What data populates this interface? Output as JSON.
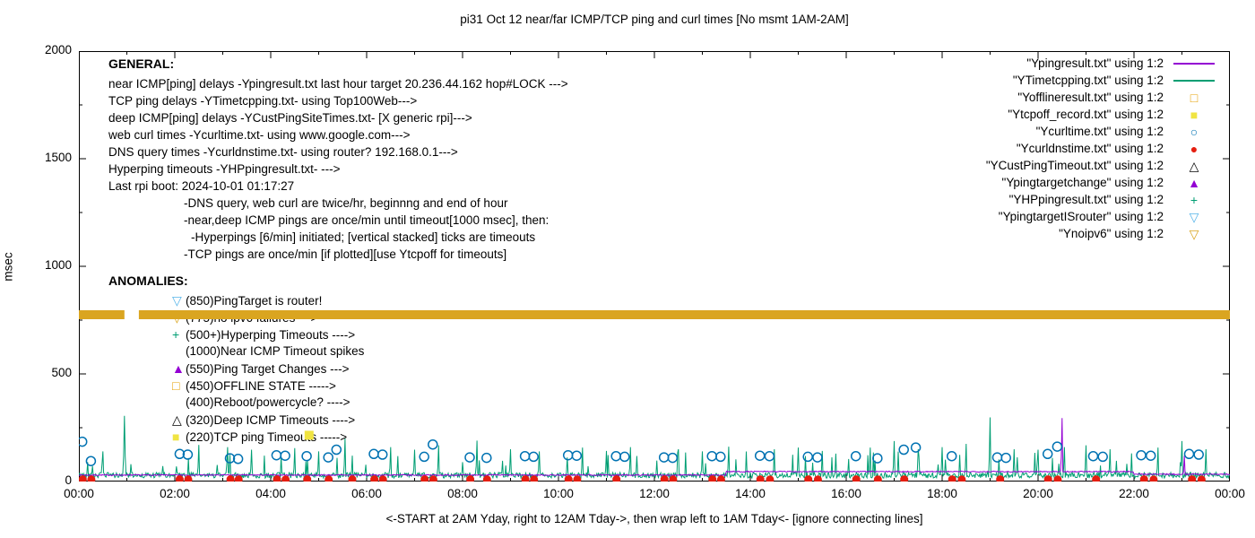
{
  "chart_data": {
    "type": "mixed",
    "title": "pi31 Oct 12  near/far ICMP/TCP ping and curl times [No msmt 1AM-2AM]",
    "ylabel": "msec",
    "xlabel": "<-START at 2AM Yday, right to 12AM Tday->, then wrap left to 1AM Tday<- [ignore connecting lines]",
    "ylim": [
      0,
      2000
    ],
    "yticks": [
      0,
      500,
      1000,
      1500,
      2000
    ],
    "x_hours": [
      0,
      24
    ],
    "xticks": [
      "00:00",
      "02:00",
      "04:00",
      "06:00",
      "08:00",
      "10:00",
      "12:00",
      "14:00",
      "16:00",
      "18:00",
      "20:00",
      "22:00",
      "00:00"
    ],
    "legend": [
      {
        "label": "\"Ypingresult.txt\" using 1:2",
        "style": "line",
        "color": "#9400D3"
      },
      {
        "label": "\"YTimetcpping.txt\" using 1:2",
        "style": "line",
        "color": "#009E73"
      },
      {
        "label": "\"Yofflineresult.txt\" using 1:2",
        "style": "square-open",
        "color": "#E69F00"
      },
      {
        "label": "\"Ytcpoff_record.txt\" using 1:2",
        "style": "square-filled",
        "color": "#F0E442"
      },
      {
        "label": "\"Ycurltime.txt\" using 1:2",
        "style": "circle-open",
        "color": "#0072B2"
      },
      {
        "label": "\"Ycurldnstime.txt\" using 1:2",
        "style": "circle-filled",
        "color": "#E51E10"
      },
      {
        "label": "\"YCustPingTimeout.txt\" using 1:2",
        "style": "triangle-open",
        "color": "#000000"
      },
      {
        "label": "\"Ypingtargetchange\" using 1:2",
        "style": "triangle-filled",
        "color": "#9400D3"
      },
      {
        "label": "\"YHPpingresult.txt\" using 1:2",
        "style": "plus",
        "color": "#009E73"
      },
      {
        "label": "\"YpingtargetISrouter\" using 1:2",
        "style": "triangle-down-open",
        "color": "#56B4E9"
      },
      {
        "label": "\"Ynoipv6\" using 1:2",
        "style": "triangle-down-open",
        "color": "#DAA520"
      }
    ],
    "general": {
      "heading": "GENERAL:",
      "lines": [
        {
          "text": "near ICMP[ping] delays -Ypingresult.txt last hour target 20.236.44.162 hop#LOCK --->",
          "indent": 0
        },
        {
          "text": "TCP ping delays -YTimetcpping.txt- using Top100Web--->",
          "indent": 0
        },
        {
          "text": "deep ICMP[ping] delays -YCustPingSiteTimes.txt- [X generic rpi]--->",
          "indent": 0
        },
        {
          "text": "web curl times -Ycurltime.txt- using www.google.com--->",
          "indent": 0
        },
        {
          "text": "DNS query times -Ycurldnstime.txt- using router? 192.168.0.1--->",
          "indent": 0
        },
        {
          "text": "Hyperping timeouts -YHPpingresult.txt- --->",
          "indent": 0
        },
        {
          "text": "Last rpi boot: 2024-10-01 01:17:27",
          "indent": 0
        },
        {
          "text": "-DNS query, web curl are twice/hr, beginnng and end of hour",
          "indent": 1
        },
        {
          "text": "-near,deep ICMP pings are once/min until timeout[1000 msec], then:",
          "indent": 1
        },
        {
          "text": "-Hyperpings [6/min] initiated; [vertical stacked] ticks are timeouts",
          "indent": 2
        },
        {
          "text": "-TCP pings are once/min [if plotted][use Ytcpoff for timeouts]",
          "indent": 1
        }
      ]
    },
    "anomalies": {
      "heading": "ANOMALIES:",
      "items": [
        {
          "marker": "triangle-down-open",
          "color": "#56B4E9",
          "text": "(850)PingTarget is router!"
        },
        {
          "marker": "triangle-down-open",
          "color": "#DAA520",
          "text": "(775)no ipv6 failures --->"
        },
        {
          "marker": "plus",
          "color": "#009E73",
          "text": "(500+)Hyperping Timeouts ---->"
        },
        {
          "marker": null,
          "color": "#000000",
          "text": "(1000)Near ICMP Timeout spikes"
        },
        {
          "marker": "triangle-filled",
          "color": "#9400D3",
          "text": "(550)Ping Target Changes --->"
        },
        {
          "marker": "square-open",
          "color": "#E69F00",
          "text": "(450)OFFLINE STATE ----->"
        },
        {
          "marker": null,
          "color": "#000000",
          "text": "(400)Reboot/powercycle? ---->"
        },
        {
          "marker": "triangle-open",
          "color": "#000000",
          "text": "(320)Deep ICMP Timeouts ---->"
        },
        {
          "marker": "square-filled",
          "color": "#F0E442",
          "text": "(220)TCP ping Timeouts ----->"
        }
      ]
    },
    "series": {
      "ping_line": {
        "name": "Ypingresult.txt",
        "kind": "ping",
        "color": "#9400D3",
        "baseline_early": 30,
        "baseline_mid": 46,
        "baseline_late": 34,
        "spikes": [
          [
            20.5,
            295
          ],
          [
            23.05,
            120
          ]
        ]
      },
      "tcp_line": {
        "name": "YTimetcpping.txt",
        "kind": "tcp",
        "color": "#009E73",
        "baseline": 28,
        "noise": 26,
        "spikes": [
          [
            0.5,
            140
          ],
          [
            0.95,
            305
          ],
          [
            2.5,
            170
          ],
          [
            3.1,
            160
          ],
          [
            3.6,
            148
          ],
          [
            4.5,
            155
          ],
          [
            5.0,
            140
          ],
          [
            5.55,
            200
          ],
          [
            6.5,
            160
          ],
          [
            7.0,
            148
          ],
          [
            7.5,
            168
          ],
          [
            8.3,
            190
          ],
          [
            9.0,
            150
          ],
          [
            9.6,
            140
          ],
          [
            10.5,
            158
          ],
          [
            11.0,
            142
          ],
          [
            11.5,
            160
          ],
          [
            12.5,
            150
          ],
          [
            13.0,
            140
          ],
          [
            13.55,
            162
          ],
          [
            14.5,
            150
          ],
          [
            15.0,
            158
          ],
          [
            15.5,
            142
          ],
          [
            16.5,
            158
          ],
          [
            17.0,
            188
          ],
          [
            17.5,
            150
          ],
          [
            18.0,
            160
          ],
          [
            18.5,
            175
          ],
          [
            19.0,
            298
          ],
          [
            19.5,
            150
          ],
          [
            20.0,
            148
          ],
          [
            20.55,
            160
          ],
          [
            21.0,
            168
          ],
          [
            21.5,
            150
          ],
          [
            22.5,
            158
          ],
          [
            23.0,
            188
          ],
          [
            23.5,
            150
          ]
        ]
      },
      "curl_points": {
        "name": "Ycurltime.txt",
        "color": "#0072B2",
        "marker": "circle-open",
        "points": [
          [
            0.07,
            185
          ],
          [
            0.25,
            95
          ],
          [
            2.1,
            128
          ],
          [
            2.27,
            125
          ],
          [
            3.15,
            108
          ],
          [
            3.32,
            105
          ],
          [
            4.12,
            122
          ],
          [
            4.3,
            120
          ],
          [
            4.75,
            118
          ],
          [
            5.2,
            112
          ],
          [
            5.37,
            148
          ],
          [
            6.15,
            128
          ],
          [
            6.33,
            125
          ],
          [
            7.2,
            115
          ],
          [
            7.38,
            172
          ],
          [
            8.15,
            112
          ],
          [
            8.5,
            110
          ],
          [
            9.3,
            118
          ],
          [
            9.48,
            115
          ],
          [
            10.2,
            122
          ],
          [
            10.38,
            120
          ],
          [
            11.2,
            118
          ],
          [
            11.38,
            115
          ],
          [
            12.2,
            112
          ],
          [
            12.38,
            110
          ],
          [
            13.2,
            118
          ],
          [
            13.38,
            115
          ],
          [
            14.2,
            120
          ],
          [
            14.4,
            118
          ],
          [
            15.2,
            115
          ],
          [
            15.4,
            112
          ],
          [
            16.2,
            118
          ],
          [
            16.65,
            108
          ],
          [
            17.2,
            148
          ],
          [
            17.45,
            158
          ],
          [
            18.2,
            118
          ],
          [
            19.15,
            112
          ],
          [
            19.33,
            110
          ],
          [
            20.2,
            128
          ],
          [
            20.4,
            162
          ],
          [
            21.15,
            118
          ],
          [
            21.35,
            115
          ],
          [
            22.15,
            122
          ],
          [
            22.35,
            120
          ],
          [
            23.15,
            128
          ],
          [
            23.35,
            125
          ]
        ]
      },
      "dns_points": {
        "name": "Ycurldnstime.txt",
        "color": "#E51E10",
        "marker": "circle-filled",
        "points": [
          [
            0.08,
            10
          ],
          [
            0.26,
            9
          ],
          [
            2.1,
            10
          ],
          [
            2.28,
            9
          ],
          [
            3.16,
            10
          ],
          [
            3.33,
            9
          ],
          [
            4.13,
            10
          ],
          [
            4.31,
            9
          ],
          [
            4.76,
            10
          ],
          [
            5.21,
            9
          ],
          [
            5.7,
            10
          ],
          [
            6.16,
            10
          ],
          [
            6.34,
            9
          ],
          [
            7.21,
            10
          ],
          [
            7.39,
            9
          ],
          [
            8.16,
            10
          ],
          [
            8.51,
            9
          ],
          [
            9.31,
            10
          ],
          [
            9.49,
            9
          ],
          [
            10.21,
            10
          ],
          [
            10.39,
            9
          ],
          [
            11.21,
            10
          ],
          [
            12.21,
            10
          ],
          [
            12.39,
            9
          ],
          [
            13.21,
            10
          ],
          [
            13.39,
            9
          ],
          [
            14.21,
            10
          ],
          [
            14.41,
            9
          ],
          [
            15.21,
            10
          ],
          [
            15.41,
            9
          ],
          [
            16.21,
            10
          ],
          [
            16.66,
            9
          ],
          [
            17.21,
            10
          ],
          [
            18.21,
            10
          ],
          [
            18.41,
            9
          ],
          [
            19.21,
            10
          ],
          [
            20.21,
            10
          ],
          [
            20.41,
            9
          ],
          [
            21.21,
            10
          ],
          [
            22.21,
            10
          ],
          [
            22.41,
            9
          ],
          [
            23.21,
            10
          ],
          [
            23.41,
            9
          ]
        ]
      },
      "tcpoff_points": {
        "name": "Ytcpoff_record.txt",
        "color": "#F0E442",
        "marker": "square-filled",
        "points": [
          [
            4.8,
            215
          ]
        ]
      },
      "noipv6_band": {
        "name": "Ynoipv6",
        "color": "#DAA520",
        "y": 775,
        "gap": [
          0.95,
          1.25
        ],
        "x_from": 0,
        "x_to": 24
      }
    }
  }
}
